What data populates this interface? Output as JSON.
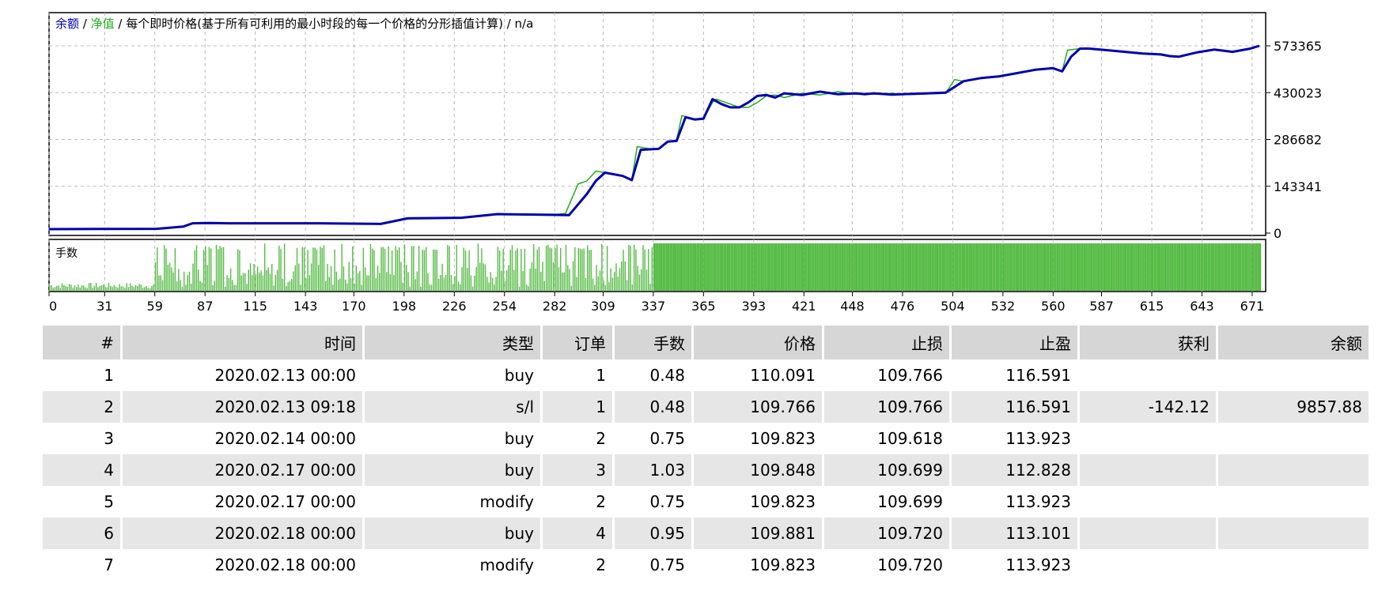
{
  "legend": {
    "balance_label": "余额",
    "sep1": " / ",
    "equity_label": "净值",
    "sep2": " / ",
    "description": "每个即时价格(基于所有可利用的最小时段的每一个价格的分形插值计算)",
    "sep3": " / ",
    "na": "n/a"
  },
  "volume_label": "手数",
  "colors": {
    "balance": "#0000aa",
    "equity": "#22aa22",
    "volume": "#55bb44",
    "grid": "#b8b8b8"
  },
  "chart_data": [
    {
      "type": "line",
      "title": "",
      "xlim": [
        0,
        675
      ],
      "ylim": [
        0,
        573365
      ],
      "y_ticks": [
        0,
        143341,
        286682,
        430023,
        573365
      ],
      "y_tick_labels": [
        "0",
        "143341",
        "286682",
        "430023",
        "573365"
      ],
      "grid": true,
      "series": [
        {
          "name": "余额",
          "color": "#0000aa",
          "x": [
            0,
            60,
            75,
            80,
            90,
            100,
            150,
            185,
            200,
            230,
            250,
            280,
            290,
            300,
            305,
            310,
            320,
            325,
            330,
            340,
            345,
            350,
            355,
            360,
            365,
            370,
            375,
            380,
            385,
            390,
            395,
            400,
            405,
            410,
            420,
            430,
            440,
            450,
            455,
            460,
            470,
            480,
            490,
            500,
            510,
            520,
            530,
            540,
            550,
            560,
            565,
            570,
            575,
            580,
            590,
            600,
            610,
            620,
            625,
            630,
            640,
            650,
            660,
            670,
            675
          ],
          "y": [
            12000,
            13000,
            20000,
            30000,
            31000,
            30000,
            30000,
            28000,
            45000,
            47000,
            58000,
            56000,
            55000,
            120000,
            160000,
            185000,
            175000,
            162000,
            255000,
            258000,
            280000,
            282000,
            355000,
            348000,
            350000,
            410000,
            395000,
            385000,
            385000,
            400000,
            420000,
            423000,
            415000,
            428000,
            423000,
            433000,
            425000,
            428000,
            425000,
            428000,
            424000,
            426000,
            428000,
            430000,
            465000,
            475000,
            480000,
            490000,
            500000,
            505000,
            495000,
            540000,
            565000,
            565000,
            560000,
            555000,
            550000,
            547000,
            542000,
            540000,
            553000,
            562000,
            555000,
            565000,
            573365
          ]
        },
        {
          "name": "净值",
          "color": "#22aa22",
          "x": [
            0,
            60,
            75,
            80,
            90,
            100,
            150,
            185,
            200,
            230,
            250,
            280,
            288,
            295,
            300,
            305,
            310,
            320,
            325,
            328,
            335,
            340,
            345,
            350,
            353,
            360,
            365,
            370,
            372,
            380,
            385,
            390,
            395,
            400,
            405,
            410,
            420,
            430,
            440,
            450,
            455,
            460,
            470,
            480,
            490,
            500,
            505,
            510,
            520,
            530,
            540,
            550,
            560,
            565,
            568,
            575,
            580,
            590,
            600,
            610,
            620,
            625,
            630,
            640,
            650,
            660,
            670,
            675
          ],
          "y": [
            12000,
            13000,
            20000,
            30000,
            31000,
            30000,
            30000,
            28000,
            47000,
            47000,
            58000,
            56000,
            60000,
            150000,
            160000,
            190000,
            185000,
            175000,
            162000,
            265000,
            258000,
            258000,
            280000,
            285000,
            360000,
            348000,
            350000,
            400000,
            410000,
            395000,
            385000,
            385000,
            400000,
            420000,
            423000,
            415000,
            428000,
            423000,
            433000,
            425000,
            428000,
            425000,
            428000,
            424000,
            426000,
            428000,
            470000,
            465000,
            475000,
            480000,
            490000,
            500000,
            505000,
            495000,
            560000,
            565000,
            565000,
            560000,
            555000,
            550000,
            547000,
            542000,
            540000,
            553000,
            562000,
            555000,
            565000,
            573365
          ]
        }
      ]
    },
    {
      "type": "bar",
      "title": "手数",
      "xlim": [
        0,
        675
      ],
      "x_ticks": [
        0,
        31,
        59,
        87,
        115,
        143,
        170,
        198,
        226,
        254,
        282,
        309,
        337,
        365,
        393,
        421,
        448,
        476,
        504,
        532,
        560,
        587,
        615,
        643,
        671
      ],
      "x_tick_labels": [
        "0",
        "31",
        "59",
        "87",
        "115",
        "143",
        "170",
        "198",
        "226",
        "254",
        "282",
        "309",
        "337",
        "365",
        "393",
        "421",
        "448",
        "476",
        "504",
        "532",
        "560",
        "587",
        "615",
        "643",
        "671"
      ],
      "ylim": [
        0,
        1.0
      ],
      "grid": true,
      "series": [
        {
          "name": "手数",
          "color": "#55bb44",
          "pattern": "dense-sticks",
          "low_until": 59,
          "mixed_until": 337,
          "full_from": 337
        }
      ]
    }
  ],
  "table": {
    "headers": [
      "#",
      "时间",
      "类型",
      "订单",
      "手数",
      "价格",
      "止损",
      "止盈",
      "获利",
      "余额"
    ],
    "rows": [
      [
        "1",
        "2020.02.13 00:00",
        "buy",
        "1",
        "0.48",
        "110.091",
        "109.766",
        "116.591",
        "",
        ""
      ],
      [
        "2",
        "2020.02.13 09:18",
        "s/l",
        "1",
        "0.48",
        "109.766",
        "109.766",
        "116.591",
        "-142.12",
        "9857.88"
      ],
      [
        "3",
        "2020.02.14 00:00",
        "buy",
        "2",
        "0.75",
        "109.823",
        "109.618",
        "113.923",
        "",
        ""
      ],
      [
        "4",
        "2020.02.17 00:00",
        "buy",
        "3",
        "1.03",
        "109.848",
        "109.699",
        "112.828",
        "",
        ""
      ],
      [
        "5",
        "2020.02.17 00:00",
        "modify",
        "2",
        "0.75",
        "109.823",
        "109.699",
        "113.923",
        "",
        ""
      ],
      [
        "6",
        "2020.02.18 00:00",
        "buy",
        "4",
        "0.95",
        "109.881",
        "109.720",
        "113.101",
        "",
        ""
      ],
      [
        "7",
        "2020.02.18 00:00",
        "modify",
        "2",
        "0.75",
        "109.823",
        "109.720",
        "113.923",
        "",
        ""
      ]
    ]
  }
}
